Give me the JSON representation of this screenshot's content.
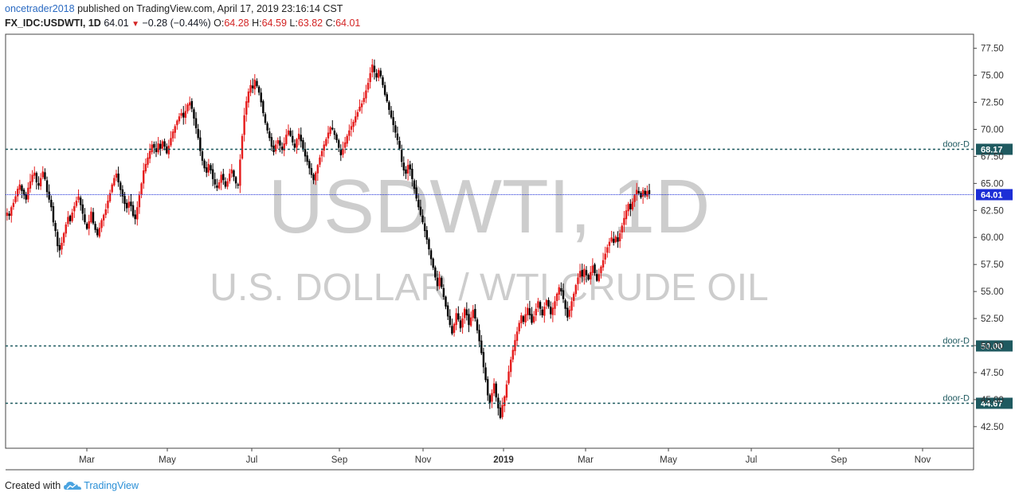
{
  "header": {
    "username": "oncetrader2018",
    "published": "published on TradingView.com, April 17, 2019 23:16:14 CST",
    "symbol": "FX_IDC:USDWTI, 1D",
    "last": "64.01",
    "change": "−0.28 (−0.44%)",
    "o_label": "O:",
    "o_value": "64.28",
    "h_label": "H:",
    "h_value": "64.59",
    "l_label": "L:",
    "l_value": "63.82",
    "c_label": "C:",
    "c_value": "64.01"
  },
  "watermark": {
    "line1": "USDWTI, 1D",
    "line2": "U.S. DOLLAR / WTI CRUDE OIL"
  },
  "footer": {
    "created_with": "Created with",
    "brand": "TradingView"
  },
  "colors": {
    "up": "#e51b1b",
    "down": "#000000",
    "door_line": "#1f5a60",
    "last_price": "#1c2ed6",
    "grid": "#ffffff"
  },
  "chart_data": {
    "type": "candlestick",
    "interval": "1D",
    "ylim": [
      40.5,
      78.8
    ],
    "y_ticks": [
      "42.50",
      "45.00",
      "47.50",
      "50.00",
      "52.50",
      "55.00",
      "57.50",
      "60.00",
      "62.50",
      "65.00",
      "67.50",
      "70.00",
      "72.50",
      "75.00",
      "77.50"
    ],
    "x_ticks": [
      "Mar",
      "May",
      "Jul",
      "Sep",
      "Nov",
      "2019",
      "Mar",
      "May",
      "Jul",
      "Sep",
      "Nov"
    ],
    "last_price": {
      "value": 64.01,
      "label": "64.01"
    },
    "levels": [
      {
        "name": "door-D",
        "value": 68.17,
        "label": "68.17"
      },
      {
        "name": "door-D",
        "value": 50.0,
        "label": "50.00"
      },
      {
        "name": "door-D",
        "value": 44.67,
        "label": "44.67"
      }
    ],
    "closes": [
      62.3,
      62.0,
      62.8,
      63.2,
      63.8,
      64.5,
      64.9,
      64.3,
      63.9,
      63.5,
      64.6,
      65.2,
      65.8,
      66.0,
      65.1,
      64.8,
      65.5,
      66.1,
      65.4,
      64.2,
      63.5,
      62.8,
      61.4,
      60.6,
      59.2,
      58.8,
      59.5,
      60.4,
      61.2,
      61.9,
      61.5,
      62.3,
      62.9,
      63.4,
      63.8,
      63.0,
      62.2,
      61.4,
      60.8,
      61.5,
      62.4,
      61.3,
      60.7,
      60.2,
      60.9,
      61.6,
      62.1,
      62.6,
      63.4,
      64.1,
      64.9,
      65.5,
      65.9,
      65.1,
      64.4,
      63.8,
      63.1,
      62.7,
      63.3,
      62.9,
      62.0,
      61.7,
      62.8,
      63.9,
      65.0,
      66.2,
      66.8,
      67.4,
      68.0,
      68.6,
      68.3,
      67.9,
      68.7,
      68.2,
      68.9,
      68.4,
      67.8,
      68.5,
      69.2,
      69.8,
      70.3,
      70.8,
      71.2,
      71.5,
      71.1,
      71.7,
      72.3,
      72.5,
      71.9,
      71.0,
      70.1,
      69.2,
      68.0,
      67.1,
      66.4,
      66.0,
      66.8,
      66.2,
      65.4,
      64.9,
      64.6,
      65.1,
      65.8,
      65.3,
      64.7,
      65.2,
      65.9,
      66.3,
      65.6,
      65.0,
      64.8,
      67.2,
      69.4,
      71.3,
      72.6,
      73.5,
      74.1,
      73.8,
      74.6,
      74.0,
      73.4,
      72.5,
      71.5,
      70.6,
      69.9,
      69.2,
      68.4,
      67.9,
      68.6,
      69.0,
      68.5,
      68.1,
      68.7,
      69.5,
      69.9,
      69.4,
      68.8,
      68.3,
      69.1,
      69.6,
      68.9,
      68.2,
      67.5,
      67.0,
      66.4,
      65.8,
      65.3,
      66.0,
      66.7,
      67.4,
      68.0,
      68.6,
      69.1,
      69.7,
      70.2,
      70.0,
      69.5,
      69.0,
      68.3,
      67.6,
      68.2,
      68.8,
      69.4,
      69.9,
      70.3,
      70.7,
      71.2,
      71.6,
      72.1,
      72.4,
      72.9,
      73.6,
      74.3,
      75.2,
      76.0,
      75.3,
      74.8,
      75.5,
      74.9,
      74.1,
      73.2,
      72.6,
      71.8,
      71.1,
      70.4,
      69.7,
      69.0,
      68.2,
      67.0,
      66.2,
      65.9,
      66.7,
      66.3,
      65.4,
      64.5,
      63.6,
      62.8,
      62.1,
      61.4,
      60.6,
      59.8,
      58.9,
      58.0,
      57.2,
      56.3,
      55.5,
      56.3,
      55.4,
      54.5,
      53.6,
      52.7,
      51.9,
      51.1,
      52.0,
      53.0,
      52.4,
      51.6,
      52.5,
      53.4,
      52.8,
      51.9,
      52.6,
      53.3,
      52.5,
      51.4,
      50.4,
      49.3,
      48.0,
      46.8,
      45.4,
      44.7,
      45.6,
      46.5,
      45.2,
      44.2,
      43.3,
      44.5,
      45.3,
      46.4,
      47.6,
      48.7,
      49.6,
      50.5,
      51.3,
      52.1,
      52.8,
      52.2,
      52.9,
      53.5,
      52.8,
      52.1,
      52.7,
      53.4,
      54.1,
      53.4,
      52.8,
      53.6,
      54.2,
      53.6,
      52.9,
      53.5,
      54.1,
      54.8,
      55.4,
      55.0,
      54.3,
      53.4,
      52.6,
      53.3,
      54.1,
      54.8,
      55.6,
      56.3,
      56.9,
      56.4,
      57.1,
      56.5,
      56.1,
      56.8,
      57.4,
      56.7,
      56.0,
      56.6,
      57.3,
      57.9,
      58.5,
      59.1,
      59.6,
      60.0,
      59.5,
      60.1,
      59.6,
      60.4,
      61.1,
      61.8,
      62.5,
      63.1,
      62.6,
      63.3,
      63.9,
      64.4,
      64.1,
      63.7,
      64.4,
      63.9,
      64.3,
      64.01
    ]
  }
}
